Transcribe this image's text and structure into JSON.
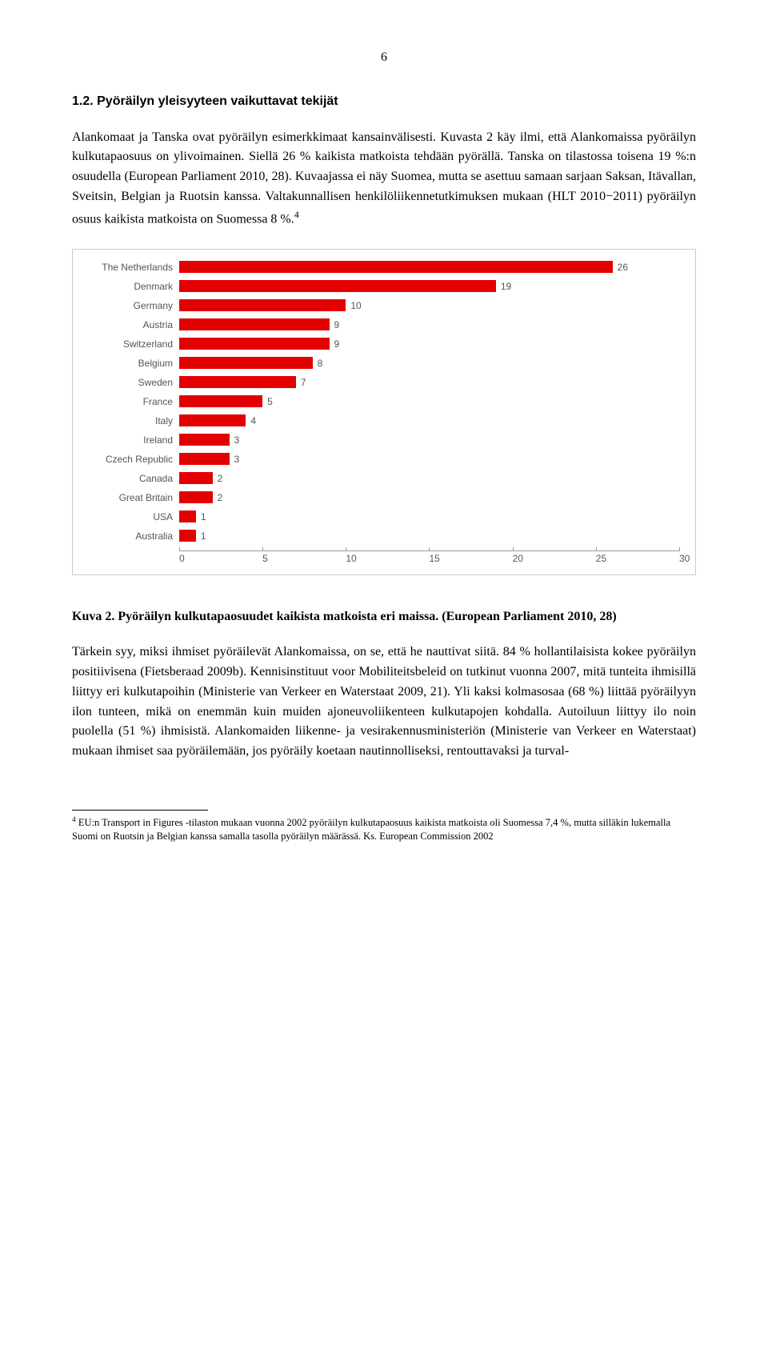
{
  "page_number": "6",
  "heading": "1.2.   Pyöräilyn yleisyyteen vaikuttavat tekijät",
  "paragraph1": "Alankomaat ja Tanska ovat pyöräilyn esimerkkimaat kansainvälisesti. Kuvasta 2 käy ilmi, että Alankomaissa pyöräilyn kulkutapaosuus on ylivoimainen. Siellä 26 % kaikista matkoista tehdään pyörällä. Tanska on tilastossa toisena 19 %:n osuudella (European Parliament 2010, 28). Kuvaajassa ei näy Suomea, mutta se asettuu samaan sarjaan Saksan, Itävallan, Sveitsin, Belgian ja Ruotsin kanssa. Valtakunnallisen henkilöliikennetutkimuksen mukaan (HLT 2010−2011) pyöräilyn osuus kaikista matkoista on Suomessa 8 %.",
  "p1_sup": "4",
  "chart": {
    "type": "bar",
    "categories": [
      "The Netherlands",
      "Denmark",
      "Germany",
      "Austria",
      "Switzerland",
      "Belgium",
      "Sweden",
      "France",
      "Italy",
      "Ireland",
      "Czech Republic",
      "Canada",
      "Great Britain",
      "USA",
      "Australia"
    ],
    "values": [
      26,
      19,
      10,
      9,
      9,
      8,
      7,
      5,
      4,
      3,
      3,
      2,
      2,
      1,
      1
    ],
    "bar_color": "#e30000",
    "x_ticks": [
      0,
      5,
      10,
      15,
      20,
      25,
      30
    ],
    "x_max": 30,
    "label_color": "#555555",
    "font_family": "Arial",
    "font_size": 12,
    "border_color": "#cccccc",
    "axis_color": "#999999"
  },
  "caption_bold": "Kuva 2. Pyöräilyn kulkutapaosuudet kaikista matkoista eri maissa. (European Parliament 2010, 28)",
  "paragraph2": "Tärkein syy, miksi ihmiset pyöräilevät Alankomaissa, on se, että he nauttivat siitä. 84 % hollantilaisista kokee pyöräilyn positiivisena (Fietsberaad 2009b). Kennisinstituut voor Mobiliteitsbeleid on tutkinut vuonna 2007, mitä tunteita ihmisillä liittyy eri kulkutapoihin (Ministerie van Verkeer en Waterstaat 2009, 21). Yli kaksi kolmasosaa (68 %) liittää pyöräilyyn ilon tunteen, mikä on enemmän kuin muiden ajoneuvoliikenteen kulkutapojen kohdalla. Autoiluun liittyy ilo noin puolella (51 %) ihmisistä. Alankomaiden liikenne- ja vesirakennusministeriön (Ministerie van Verkeer en Waterstaat) mukaan ihmiset saa pyöräilemään, jos pyöräily koetaan nautinnolliseksi, rentouttavaksi ja turval-",
  "footnote_marker": "4",
  "footnote": " EU:n Transport in Figures -tilaston mukaan vuonna 2002 pyöräilyn kulkutapaosuus kaikista matkoista oli Suomessa 7,4 %, mutta silläkin lukemalla Suomi on Ruotsin ja Belgian kanssa samalla tasolla pyöräilyn määrässä. Ks. European Commission 2002"
}
